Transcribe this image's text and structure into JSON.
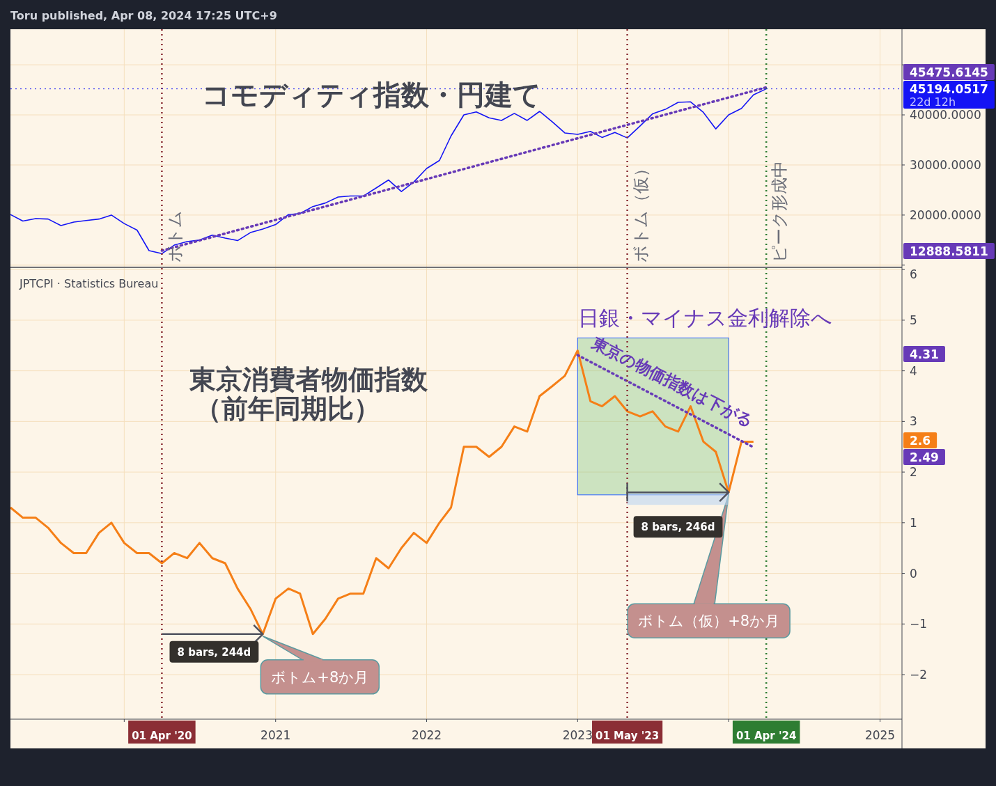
{
  "chart_data": [
    {
      "type": "line",
      "title": "コモディティ指数・円建て",
      "annotations": [
        "Toru published, Apr 08, 2024 17:25 UTC+9",
        "22d 12h",
        "45475.6145",
        "45194.0517",
        "12888.5811"
      ],
      "x": [
        "2019-04",
        "2019-05",
        "2019-06",
        "2019-07",
        "2019-08",
        "2019-09",
        "2019-10",
        "2019-11",
        "2019-12",
        "2020-01",
        "2020-02",
        "2020-03",
        "2020-04",
        "2020-05",
        "2020-06",
        "2020-07",
        "2020-08",
        "2020-09",
        "2020-10",
        "2020-11",
        "2020-12",
        "2021-01",
        "2021-02",
        "2021-03",
        "2021-04",
        "2021-05",
        "2021-06",
        "2021-07",
        "2021-08",
        "2021-09",
        "2021-10",
        "2021-11",
        "2021-12",
        "2022-01",
        "2022-02",
        "2022-03",
        "2022-04",
        "2022-05",
        "2022-06",
        "2022-07",
        "2022-08",
        "2022-09",
        "2022-10",
        "2022-11",
        "2022-12",
        "2023-01",
        "2023-02",
        "2023-03",
        "2023-04",
        "2023-05",
        "2023-06",
        "2023-07",
        "2023-08",
        "2023-09",
        "2023-10",
        "2023-11",
        "2023-12",
        "2024-01",
        "2024-02",
        "2024-03",
        "2024-04"
      ],
      "series": [
        {
          "color": "#1414f5",
          "values": [
            20100,
            18800,
            19300,
            19200,
            17900,
            18600,
            18900,
            19200,
            20000,
            18300,
            17000,
            12900,
            12300,
            14000,
            14700,
            15000,
            16000,
            15400,
            14900,
            16500,
            17200,
            18100,
            20100,
            20300,
            21700,
            22400,
            23600,
            23800,
            23800,
            25400,
            27000,
            24700,
            26600,
            29300,
            30900,
            35800,
            40000,
            40600,
            39400,
            38900,
            40300,
            38900,
            40700,
            38600,
            36400,
            36100,
            36700,
            35500,
            36500,
            35400,
            37800,
            40200,
            41100,
            42500,
            42600,
            40500,
            37200,
            40000,
            41300,
            44000,
            45200
          ]
        },
        {
          "color": "#673ab7",
          "x": [
            "2020-04",
            "2024-04"
          ],
          "values": [
            12900,
            45500
          ],
          "line_style": "dotted"
        }
      ],
      "xlim": [
        "2019-04-01",
        "2025-02-23"
      ],
      "xticks": [
        {
          "value": "2020-01",
          "label": null
        },
        {
          "value": "2021-01",
          "label": null
        },
        {
          "value": "2022-01",
          "label": null
        },
        {
          "value": "2023-01",
          "label": null
        },
        {
          "value": "2024-01",
          "label": null
        },
        {
          "value": "2025-01",
          "label": null
        }
      ],
      "ylim": [
        9700,
        57100
      ],
      "yticks": [
        {
          "value": 10000,
          "label": null
        },
        {
          "value": 20000,
          "label": "20000.0000"
        },
        {
          "value": 30000,
          "label": "30000.0000"
        },
        {
          "value": 40000,
          "label": "40000.0000"
        },
        {
          "value": 50000,
          "label": null
        }
      ],
      "ref_lines": [
        {
          "axis": "x",
          "value": "2020-04-01",
          "label": "ボトム",
          "color": "#8b2e35",
          "line_style": "dotted"
        },
        {
          "axis": "x",
          "value": "2023-05-01",
          "label": "ボトム（仮）",
          "color": "#8b2e35",
          "line_style": "dotted"
        },
        {
          "axis": "x",
          "value": "2024-04-01",
          "label": "ピーク形成中",
          "color": "#2e7d32",
          "line_style": "dotted"
        },
        {
          "axis": "y",
          "value": 45194.0517,
          "color": "#1414f5",
          "line_style": "dotted"
        }
      ],
      "grid": true,
      "tick_labels": "y"
    },
    {
      "type": "line",
      "title": "東京消費者物価指数（前年同期比）",
      "subtitle": "JPTCPI · Statistics Bureau",
      "annotations": [
        "日銀・マイナス金利解除へ",
        "東京の物価指数は下がる",
        {
          "text": "8 bars, 244d",
          "x": "2020-12",
          "y": -1.2
        },
        {
          "text": "ボトム+8か月",
          "x": "2020-12",
          "y": -1.2
        },
        {
          "text": "8 bars, 246d",
          "x": "2024-01",
          "y": 1.6
        },
        {
          "text": "ボトム（仮）+8か月",
          "x": "2024-01",
          "y": 1.6
        },
        "4.31",
        "2.6",
        "2.49"
      ],
      "x": [
        "2019-04",
        "2019-05",
        "2019-06",
        "2019-07",
        "2019-08",
        "2019-09",
        "2019-10",
        "2019-11",
        "2019-12",
        "2020-01",
        "2020-02",
        "2020-03",
        "2020-04",
        "2020-05",
        "2020-06",
        "2020-07",
        "2020-08",
        "2020-09",
        "2020-10",
        "2020-11",
        "2020-12",
        "2021-01",
        "2021-02",
        "2021-03",
        "2021-04",
        "2021-05",
        "2021-06",
        "2021-07",
        "2021-08",
        "2021-09",
        "2021-10",
        "2021-11",
        "2021-12",
        "2022-01",
        "2022-02",
        "2022-03",
        "2022-04",
        "2022-05",
        "2022-06",
        "2022-07",
        "2022-08",
        "2022-09",
        "2022-10",
        "2022-11",
        "2022-12",
        "2023-01",
        "2023-02",
        "2023-03",
        "2023-04",
        "2023-05",
        "2023-06",
        "2023-07",
        "2023-08",
        "2023-09",
        "2023-10",
        "2023-11",
        "2023-12",
        "2024-01",
        "2024-02",
        "2024-03"
      ],
      "series": [
        {
          "color": "#f57f17",
          "values": [
            1.3,
            1.1,
            1.1,
            0.9,
            0.6,
            0.4,
            0.4,
            0.8,
            1.0,
            0.6,
            0.4,
            0.4,
            0.2,
            0.4,
            0.3,
            0.6,
            0.3,
            0.2,
            -0.3,
            -0.7,
            -1.2,
            -0.5,
            -0.3,
            -0.4,
            -1.2,
            -0.9,
            -0.5,
            -0.4,
            -0.4,
            0.3,
            0.1,
            0.5,
            0.8,
            0.6,
            1.0,
            1.3,
            2.5,
            2.5,
            2.3,
            2.5,
            2.9,
            2.8,
            3.5,
            3.7,
            3.9,
            4.4,
            3.4,
            3.3,
            3.5,
            3.2,
            3.1,
            3.2,
            2.9,
            2.8,
            3.3,
            2.6,
            2.4,
            1.6,
            2.6,
            2.6
          ]
        },
        {
          "color": "#673ab7",
          "x": [
            "2023-01",
            "2024-03"
          ],
          "values": [
            4.31,
            2.49
          ],
          "line_style": "dotted"
        }
      ],
      "xlim": [
        "2019-04-01",
        "2025-02-23"
      ],
      "xticks": [
        {
          "value": "2020-01",
          "label": null
        },
        {
          "value": "2021-01",
          "label": "2021"
        },
        {
          "value": "2022-01",
          "label": "2022"
        },
        {
          "value": "2023-01",
          "label": "2023"
        },
        {
          "value": "2024-01",
          "label": null
        },
        {
          "value": "2025-01",
          "label": "2025"
        }
      ],
      "ylim": [
        -2.88,
        6.03
      ],
      "yticks": [
        {
          "value": -2,
          "label": "−2"
        },
        {
          "value": -1,
          "label": "−1"
        },
        0,
        1,
        2,
        3,
        4,
        5,
        6
      ],
      "ref_lines": [
        {
          "axis": "x",
          "value": "2020-04-01",
          "label": "01 Apr '20",
          "color": "#8b2e35",
          "line_style": "dotted"
        },
        {
          "axis": "x",
          "value": "2023-05-01",
          "label": "01 May '23",
          "color": "#8b2e35",
          "line_style": "dotted"
        },
        {
          "axis": "x",
          "value": "2024-04-01",
          "label": "01 Apr '24",
          "color": "#2e7d32",
          "line_style": "dotted"
        }
      ],
      "bands": [
        {
          "axis": "x",
          "from": "2023-01",
          "to": "2024-01",
          "color": "#81c784"
        }
      ],
      "grid": true
    }
  ]
}
